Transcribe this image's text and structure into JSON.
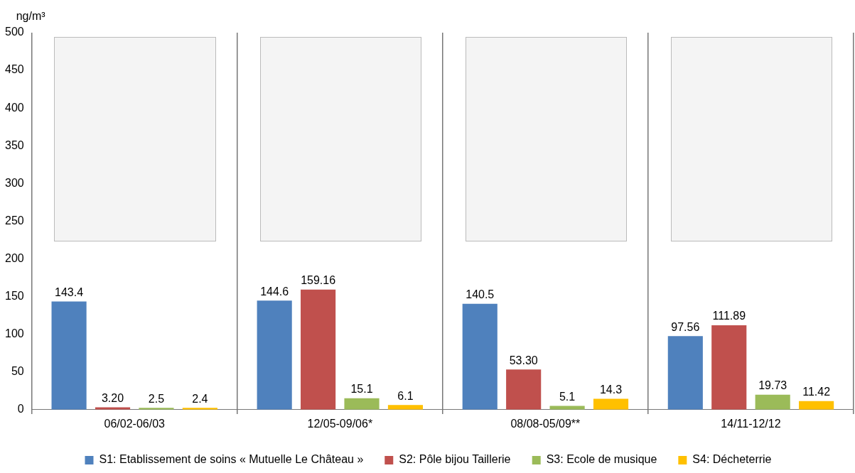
{
  "chart_data": {
    "type": "bar",
    "ylabel": "ng/m³",
    "categories": [
      "06/02-06/03",
      "12/05-09/06*",
      "08/08-05/09**",
      "14/11-12/12"
    ],
    "series": [
      {
        "name": "S1: Etablissement de soins « Mutuelle Le Château »",
        "color": "#4f81bd",
        "values": [
          143.4,
          144.6,
          140.5,
          97.56
        ],
        "value_labels": [
          "143.4",
          "144.6",
          "140.5",
          "97.56"
        ]
      },
      {
        "name": "S2: Pôle bijou Taillerie",
        "color": "#c0504d",
        "values": [
          3.2,
          159.16,
          53.3,
          111.89
        ],
        "value_labels": [
          "3.20",
          "159.16",
          "53.30",
          "111.89"
        ]
      },
      {
        "name": "S3: Ecole de musique",
        "color": "#9bbb59",
        "values": [
          2.5,
          15.1,
          5.1,
          19.73
        ],
        "value_labels": [
          "2.5",
          "15.1",
          "5.1",
          "19.73"
        ]
      },
      {
        "name": "S4: Décheterrie",
        "color": "#ffc000",
        "values": [
          2.4,
          6.1,
          14.3,
          11.42
        ],
        "value_labels": [
          "2.4",
          "6.1",
          "14.3",
          "11.42"
        ]
      }
    ],
    "ylim": [
      0,
      500
    ],
    "yticks": [
      0,
      50,
      100,
      150,
      200,
      250,
      300,
      350,
      400,
      450,
      500
    ],
    "grid": "x",
    "legend": "bottom"
  }
}
